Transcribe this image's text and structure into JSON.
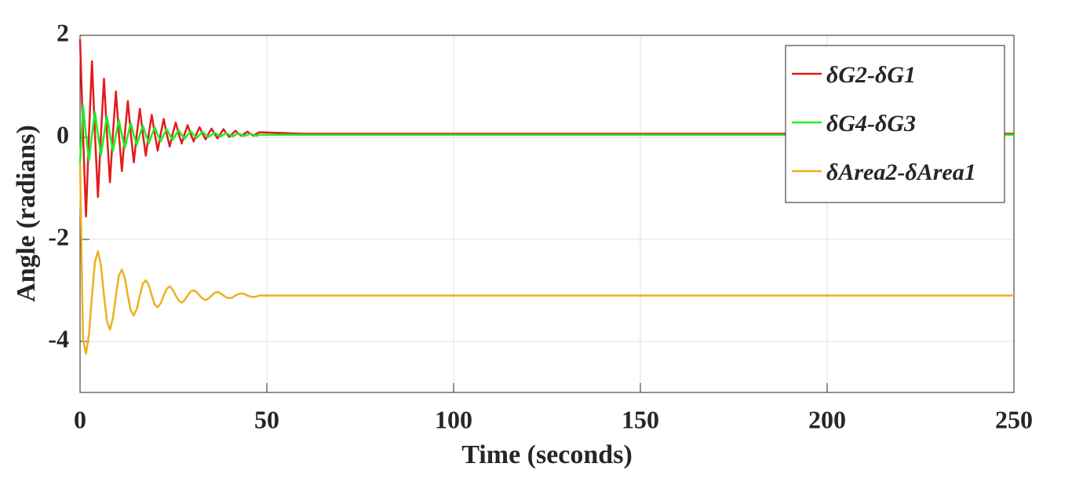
{
  "chart_data": {
    "type": "line",
    "x_label": "Time (seconds)",
    "y_label": "Angle (radians)",
    "x": [
      0,
      0.8,
      1.6,
      2.4,
      3.2,
      4,
      4.8,
      5.6,
      6.4,
      7.2,
      8,
      8.8,
      9.6,
      10.4,
      11.2,
      12,
      12.8,
      13.6,
      14.4,
      15.2,
      16,
      16.8,
      17.6,
      18.4,
      19.2,
      20,
      20.8,
      21.6,
      22.4,
      23.2,
      24,
      24.8,
      25.6,
      26.4,
      27.2,
      28,
      28.8,
      29.6,
      30.4,
      31.2,
      32,
      32.8,
      33.6,
      34.4,
      35.2,
      36,
      36.8,
      37.6,
      38.4,
      39.2,
      40,
      40.8,
      41.6,
      42.4,
      43.2,
      44,
      44.8,
      45.6,
      46.4,
      47.2,
      48,
      60,
      250
    ],
    "series": [
      {
        "name": "δG2-δG1",
        "color": "#e41a1c",
        "values": [
          1.92,
          0.07,
          -1.55,
          0.07,
          1.49,
          0.07,
          -1.17,
          0.07,
          1.15,
          0.07,
          -0.88,
          0.07,
          0.9,
          0.07,
          -0.66,
          0.07,
          0.71,
          0.07,
          -0.49,
          0.07,
          0.56,
          0.07,
          -0.36,
          0.07,
          0.44,
          0.07,
          -0.26,
          0.07,
          0.36,
          0.07,
          -0.18,
          0.07,
          0.29,
          0.07,
          -0.12,
          0.07,
          0.24,
          0.07,
          -0.08,
          0.07,
          0.2,
          0.07,
          -0.04,
          0.07,
          0.17,
          0.07,
          -0.02,
          0.07,
          0.16,
          0.07,
          0.01,
          0.07,
          0.13,
          0.07,
          0.03,
          0.07,
          0.11,
          0.07,
          0.03,
          0.07,
          0.1,
          0.07,
          0.07
        ]
      },
      {
        "name": "δG4-δG3",
        "color": "#22ee22",
        "values": [
          -0.5,
          0.62,
          0.05,
          -0.46,
          0.05,
          0.5,
          0.05,
          -0.35,
          0.05,
          0.41,
          0.05,
          -0.27,
          0.05,
          0.34,
          0.05,
          -0.21,
          0.05,
          0.28,
          0.05,
          -0.15,
          0.05,
          0.23,
          0.05,
          -0.11,
          0.05,
          0.19,
          0.05,
          -0.08,
          0.05,
          0.16,
          0.05,
          -0.05,
          0.05,
          0.14,
          0.05,
          -0.03,
          0.05,
          0.12,
          0.05,
          -0.01,
          0.05,
          0.11,
          0.05,
          0.01,
          0.05,
          0.09,
          0.05,
          0.02,
          0.05,
          0.08,
          0.05,
          0.02,
          0.05,
          0.08,
          0.05,
          0.03,
          0.05,
          0.07,
          0.05,
          0.03,
          0.05,
          0.05,
          0.05
        ]
      },
      {
        "name": "δArea2-δArea1",
        "color": "#edb120",
        "values": [
          -0.5,
          -3.96,
          -4.24,
          -3.85,
          -3.1,
          -2.44,
          -2.23,
          -2.52,
          -3.1,
          -3.6,
          -3.77,
          -3.54,
          -3.1,
          -2.71,
          -2.59,
          -2.76,
          -3.1,
          -3.4,
          -3.49,
          -3.36,
          -3.1,
          -2.87,
          -2.8,
          -2.9,
          -3.1,
          -3.28,
          -3.33,
          -3.25,
          -3.1,
          -2.97,
          -2.92,
          -2.98,
          -3.1,
          -3.2,
          -3.24,
          -3.19,
          -3.1,
          -3.02,
          -3.0,
          -3.03,
          -3.1,
          -3.16,
          -3.19,
          -3.16,
          -3.1,
          -3.05,
          -3.03,
          -3.06,
          -3.1,
          -3.14,
          -3.15,
          -3.14,
          -3.1,
          -3.07,
          -3.06,
          -3.07,
          -3.1,
          -3.12,
          -3.13,
          -3.12,
          -3.1,
          -3.1,
          -3.1
        ]
      }
    ],
    "xlim": [
      0,
      250
    ],
    "xticks": [
      0,
      50,
      100,
      150,
      200,
      250
    ],
    "ylim": [
      -5,
      2
    ],
    "yticks": [
      -4,
      -2,
      0,
      2
    ],
    "grid": true,
    "legend": "upper right"
  }
}
